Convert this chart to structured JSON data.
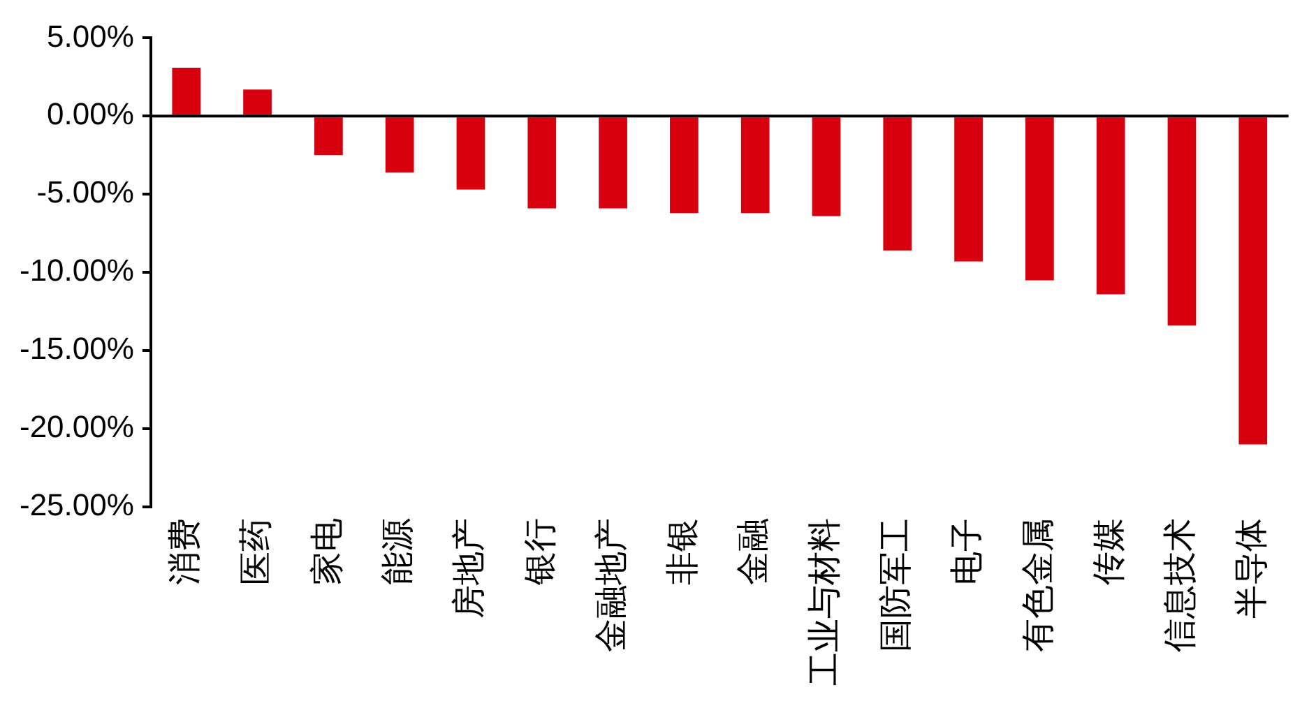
{
  "chart_data": {
    "type": "bar",
    "categories": [
      "消费",
      "医药",
      "家电",
      "能源",
      "房地产",
      "银行",
      "金融地产",
      "非银",
      "金融",
      "工业与材料",
      "国防军工",
      "电子",
      "有色金属",
      "传媒",
      "信息技术",
      "半导体"
    ],
    "values": [
      3.1,
      1.7,
      -2.5,
      -3.6,
      -4.7,
      -5.9,
      -5.9,
      -6.2,
      -6.2,
      -6.4,
      -8.6,
      -9.3,
      -10.5,
      -11.4,
      -13.4,
      -21.0
    ],
    "color": "#d7000f",
    "ylim": [
      -25,
      5
    ],
    "yticks": [
      {
        "value": 5,
        "label": "5.00%"
      },
      {
        "value": 0,
        "label": "0.00%"
      },
      {
        "value": -5,
        "label": "-5.00%"
      },
      {
        "value": -10,
        "label": "-10.00%"
      },
      {
        "value": -15,
        "label": "-15.00%"
      },
      {
        "value": -20,
        "label": "-20.00%"
      },
      {
        "value": -25,
        "label": "-25.00%"
      }
    ],
    "ref_lines": [
      {
        "axis": "y",
        "value": 0,
        "color": "#000000"
      }
    ],
    "grid": false,
    "legend": false
  }
}
